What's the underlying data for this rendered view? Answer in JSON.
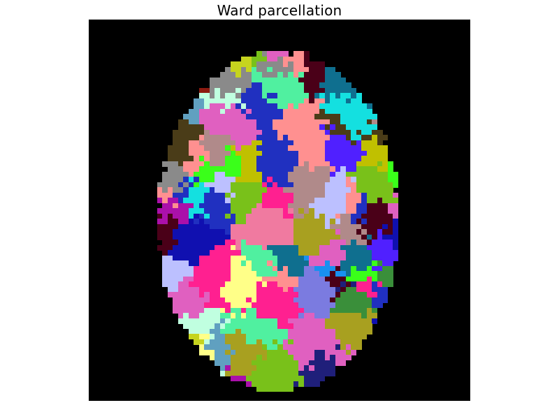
{
  "figure": {
    "title": "Ward parcellation",
    "background": "#000000"
  },
  "parcel_palette": [
    "#7b7be0",
    "#79c11a",
    "#8c1a10",
    "#c6d41e",
    "#14e0e0",
    "#1f1f7a",
    "#aa10aa",
    "#ffff88",
    "#3a8f3a",
    "#e060c0",
    "#ff2090",
    "#1890f0",
    "#3aff1a",
    "#bcc0ff",
    "#4a3c18",
    "#b08a8a",
    "#50f0a0",
    "#0f6f8f",
    "#5020ff",
    "#a8a020",
    "#4a0018",
    "#c0ffe0",
    "#809030",
    "#60a0c0",
    "#2030c0",
    "#f07aa0",
    "#8a8a8a",
    "#ff9090",
    "#c0c000",
    "#1010b0"
  ]
}
